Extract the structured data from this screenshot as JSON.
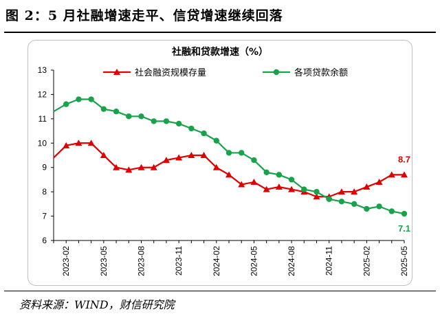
{
  "figure_title": "图 2：5 月社融增速走平、信贷增速继续回落",
  "source_note": "资料来源：WIND，财信研究院",
  "colors": {
    "social_financing": "#e00000",
    "loans": "#16a34a",
    "axis": "#000000"
  },
  "chart_data": {
    "type": "line",
    "title": "社融和贷款增速（%）",
    "xlabel": "",
    "ylabel": "",
    "ylim": [
      6,
      13
    ],
    "y_ticks": [
      6,
      7,
      8,
      9,
      10,
      11,
      12,
      13
    ],
    "grid": false,
    "legend_position": "top",
    "x": [
      "2023-01",
      "2023-02",
      "2023-03",
      "2023-04",
      "2023-05",
      "2023-06",
      "2023-07",
      "2023-08",
      "2023-09",
      "2023-10",
      "2023-11",
      "2023-12",
      "2024-01",
      "2024-02",
      "2024-03",
      "2024-04",
      "2024-05",
      "2024-06",
      "2024-07",
      "2024-08",
      "2024-09",
      "2024-10",
      "2024-11",
      "2024-12",
      "2025-01",
      "2025-02",
      "2025-03",
      "2025-04",
      "2025-05"
    ],
    "x_tick_labels": [
      "2023-02",
      "2023-05",
      "2023-08",
      "2023-11",
      "2024-02",
      "2024-05",
      "2024-08",
      "2024-11",
      "2025-02",
      "2025-05"
    ],
    "series": [
      {
        "name": "社会融资规模存量",
        "marker": "triangle",
        "values": [
          9.4,
          9.9,
          10.0,
          10.0,
          9.5,
          9.0,
          8.9,
          9.0,
          9.0,
          9.3,
          9.4,
          9.5,
          9.5,
          9.0,
          8.7,
          8.3,
          8.4,
          8.1,
          8.2,
          8.1,
          8.0,
          7.8,
          7.8,
          8.0,
          8.0,
          8.2,
          8.4,
          8.7,
          8.7
        ]
      },
      {
        "name": "各项贷款余额",
        "marker": "circle",
        "values": [
          11.3,
          11.6,
          11.8,
          11.8,
          11.4,
          11.3,
          11.1,
          11.1,
          10.9,
          10.9,
          10.8,
          10.6,
          10.4,
          10.1,
          9.6,
          9.6,
          9.3,
          8.8,
          8.7,
          8.5,
          8.1,
          8.0,
          7.7,
          7.6,
          7.5,
          7.3,
          7.4,
          7.2,
          7.1
        ]
      }
    ],
    "end_labels": [
      {
        "series": "社会融资规模存量",
        "text": "8.7"
      },
      {
        "series": "各项贷款余额",
        "text": "7.1"
      }
    ]
  }
}
